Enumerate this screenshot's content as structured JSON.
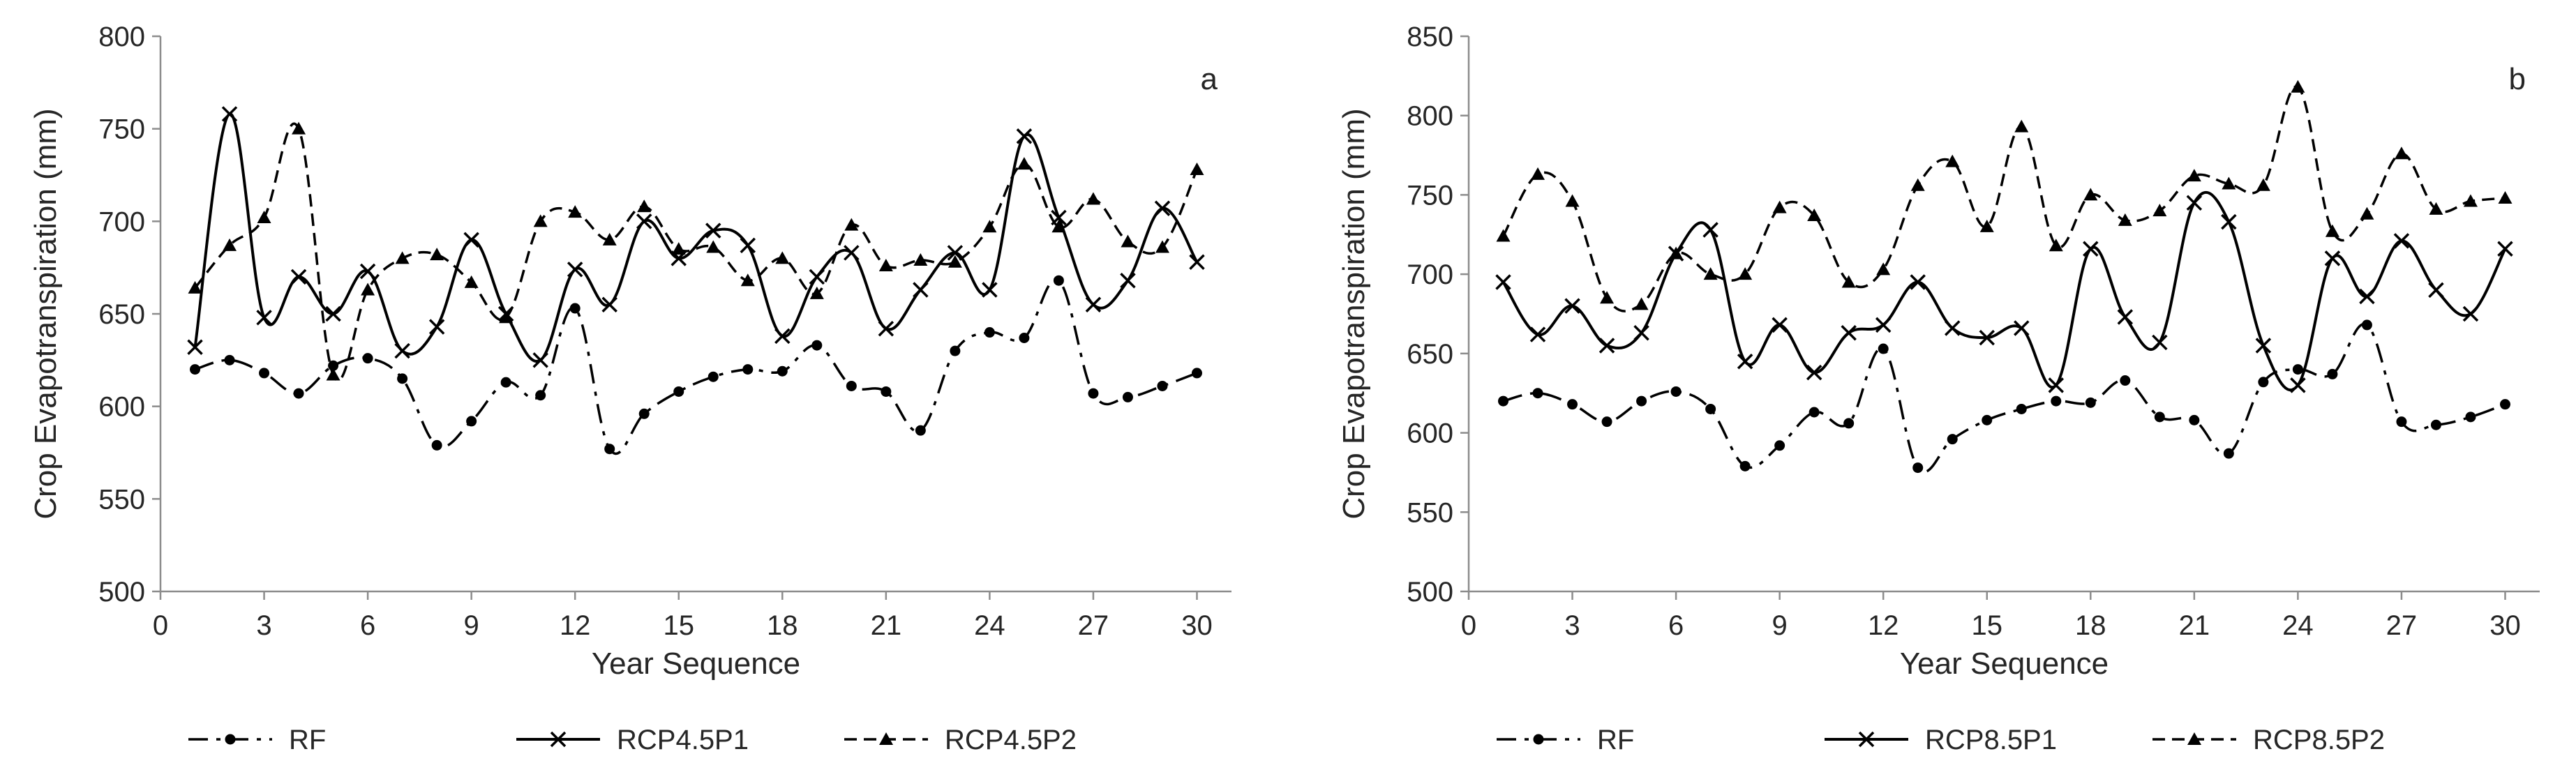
{
  "chart_data": [
    {
      "type": "line",
      "panel_label": "a",
      "xlabel": "Year Sequence",
      "ylabel": "Crop Evapotranspiration (mm)",
      "xlim": [
        0,
        31
      ],
      "ylim": [
        500,
        800
      ],
      "xticks": [
        "0",
        "3",
        "6",
        "9",
        "12",
        "15",
        "18",
        "21",
        "24",
        "27",
        "30"
      ],
      "yticks": [
        "500",
        "550",
        "600",
        "650",
        "700",
        "750",
        "800"
      ],
      "x": [
        1,
        2,
        3,
        4,
        5,
        6,
        7,
        8,
        9,
        10,
        11,
        12,
        13,
        14,
        15,
        16,
        17,
        18,
        19,
        20,
        21,
        22,
        23,
        24,
        25,
        26,
        27,
        28,
        29,
        30
      ],
      "series": [
        {
          "name": "RF",
          "line_style": "dashdot",
          "marker": "circle",
          "values": [
            620,
            625,
            618,
            607,
            622,
            626,
            615,
            579,
            592,
            613,
            606,
            653,
            577,
            596,
            608,
            616,
            620,
            619,
            633,
            611,
            608,
            587,
            630,
            640,
            637,
            668,
            607,
            605,
            611,
            618
          ]
        },
        {
          "name": "RCP4.5P1",
          "line_style": "solid",
          "marker": "x",
          "values": [
            632,
            758,
            648,
            670,
            650,
            673,
            630,
            643,
            690,
            650,
            625,
            674,
            655,
            700,
            680,
            695,
            687,
            638,
            670,
            683,
            642,
            663,
            683,
            663,
            746,
            702,
            655,
            668,
            707,
            678
          ]
        },
        {
          "name": "RCP4.5P2",
          "line_style": "dashed",
          "marker": "triangle",
          "values": [
            664,
            687,
            702,
            750,
            617,
            663,
            680,
            682,
            667,
            648,
            700,
            705,
            690,
            708,
            685,
            686,
            668,
            680,
            661,
            698,
            676,
            679,
            678,
            697,
            731,
            697,
            712,
            689,
            686,
            728
          ]
        }
      ]
    },
    {
      "type": "line",
      "panel_label": "b",
      "xlabel": "Year Sequence",
      "ylabel": "Crop Evapotranspiration (mm)",
      "xlim": [
        0,
        31
      ],
      "ylim": [
        500,
        850
      ],
      "xticks": [
        "0",
        "3",
        "6",
        "9",
        "12",
        "15",
        "18",
        "21",
        "24",
        "27",
        "30"
      ],
      "yticks": [
        "500",
        "550",
        "600",
        "650",
        "700",
        "750",
        "800",
        "850"
      ],
      "x": [
        1,
        2,
        3,
        4,
        5,
        6,
        7,
        8,
        9,
        10,
        11,
        12,
        13,
        14,
        15,
        16,
        17,
        18,
        19,
        20,
        21,
        22,
        23,
        24,
        25,
        26,
        27,
        28,
        29,
        30
      ],
      "series": [
        {
          "name": "RF",
          "line_style": "dashdot",
          "marker": "circle",
          "values": [
            620,
            625,
            618,
            607,
            620,
            626,
            615,
            579,
            592,
            613,
            606,
            653,
            578,
            596,
            608,
            615,
            620,
            619,
            633,
            610,
            608,
            587,
            632,
            640,
            637,
            668,
            607,
            605,
            610,
            618
          ]
        },
        {
          "name": "RCP8.5P1",
          "line_style": "solid",
          "marker": "x",
          "values": [
            695,
            662,
            680,
            655,
            663,
            713,
            728,
            645,
            668,
            638,
            663,
            668,
            695,
            666,
            660,
            666,
            630,
            716,
            673,
            657,
            745,
            733,
            655,
            630,
            710,
            686,
            721,
            690,
            675,
            716
          ]
        },
        {
          "name": "RCP8.5P2",
          "line_style": "dashed",
          "marker": "triangle",
          "values": [
            724,
            763,
            746,
            685,
            681,
            713,
            700,
            700,
            742,
            737,
            695,
            703,
            756,
            771,
            730,
            793,
            718,
            750,
            734,
            740,
            762,
            757,
            756,
            818,
            727,
            738,
            776,
            741,
            746,
            748
          ]
        }
      ]
    }
  ]
}
